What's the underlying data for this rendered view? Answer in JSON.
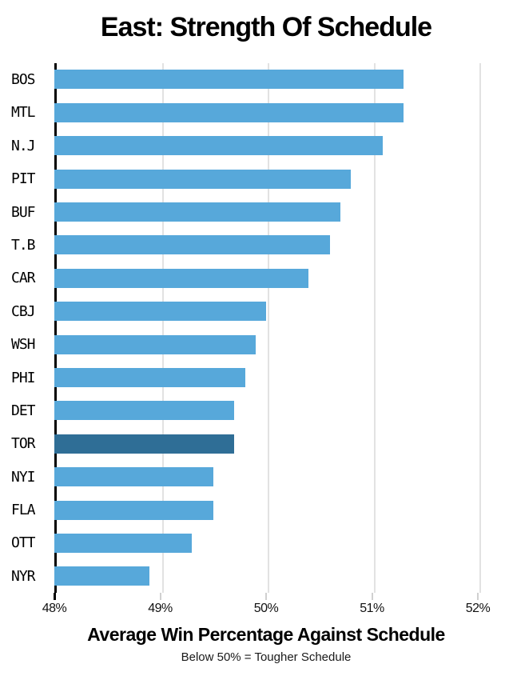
{
  "chart_data": {
    "type": "bar",
    "orientation": "horizontal",
    "title": "East: Strength Of Schedule",
    "xlabel": "Average Win Percentage Against Schedule",
    "subtitle": "Below 50% = Tougher Schedule",
    "categories": [
      "BOS",
      "MTL",
      "N.J",
      "PIT",
      "BUF",
      "T.B",
      "CAR",
      "CBJ",
      "WSH",
      "PHI",
      "DET",
      "TOR",
      "NYI",
      "FLA",
      "OTT",
      "NYR"
    ],
    "values": [
      51.3,
      51.3,
      51.1,
      50.8,
      50.7,
      50.6,
      50.4,
      50.0,
      49.9,
      49.8,
      49.7,
      49.7,
      49.5,
      49.5,
      49.3,
      48.9
    ],
    "unit": "%",
    "highlight_category": "TOR",
    "xlim": [
      48,
      52
    ],
    "x_ticks": [
      "48%",
      "49%",
      "50%",
      "51%",
      "52%"
    ],
    "grid": "vertical",
    "legend": "none",
    "colors": {
      "bar": "#57A8DA",
      "highlight_bar": "#2F6E96",
      "gridline": "#E2E2E2",
      "axis": "#000000",
      "tick_mark": "#D0D0D0",
      "first_tick_mark": "#000000"
    }
  }
}
